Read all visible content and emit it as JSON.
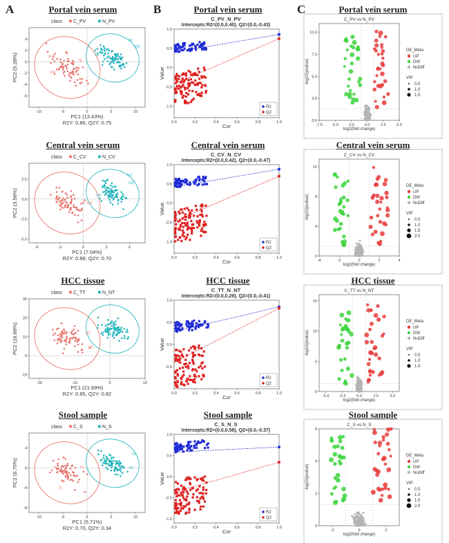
{
  "panel_letters": [
    "A",
    "B",
    "C"
  ],
  "row_titles": [
    "Portal vein serum",
    "Central vein serum",
    "HCC tissue",
    "Stool sample"
  ],
  "colors": {
    "control": "#e8746b",
    "case": "#22b5bd",
    "r2": "#1f2ad8",
    "q2": "#e02020",
    "up": "#e83b3b",
    "dw": "#3cd43c",
    "nodiff": "#b4b4b4"
  },
  "chart_data": [
    {
      "type": "scatter",
      "panel": "A",
      "row": 0,
      "legend_title": "class",
      "groups": [
        "C_PV",
        "N_PV"
      ],
      "xlabel": "PC1 (13.43%)",
      "ylabel": "PC2 (5.28%)",
      "stats": "R2Y: 0.86, Q2Y: 0.75",
      "xlim": [
        -12,
        12
      ],
      "ylim": [
        -8,
        6
      ],
      "xticks": [
        "-10",
        "-5",
        "0",
        "5",
        "10"
      ],
      "yticks": [
        "-6",
        "-4",
        "-2",
        "0",
        "2",
        "4"
      ],
      "labels": [
        "78",
        "64",
        "100",
        "103",
        "163",
        "54",
        "57"
      ]
    },
    {
      "type": "line",
      "panel": "B",
      "row": 0,
      "title": "C_PV_N_PV",
      "subtitle": "Intercepts:R2=(0.0,0.40), Q2=(0.0,-0.43)",
      "xlabel": "Cor",
      "ylabel": "Value",
      "xlim": [
        0,
        1
      ],
      "ylim": [
        -1.3,
        1.0
      ],
      "xticks": [
        "0.0",
        "0.2",
        "0.4",
        "0.6",
        "0.8",
        "1.0"
      ],
      "yticks": [
        "-1.0",
        "-0.5",
        "0.0",
        "0.5",
        "1.0"
      ],
      "series": [
        {
          "name": "R2",
          "intercept": 0.4,
          "final": 0.86
        },
        {
          "name": "Q2",
          "intercept": -0.43,
          "final": 0.75
        }
      ]
    },
    {
      "type": "scatter",
      "panel": "C",
      "row": 0,
      "title": "C_PV vs N_PV",
      "xlabel": "log2(fold change)",
      "ylabel": "-log10(pvalue)",
      "xlim": [
        -7.5,
        5
      ],
      "ylim": [
        0,
        11
      ],
      "hline": 1.3,
      "xticks": [
        "-7.5",
        "-5.0",
        "-2.5",
        "0.0",
        "2.5",
        "5.0"
      ],
      "yticks": [
        "0.0",
        "2.5",
        "5.0",
        "7.5",
        "10.0"
      ],
      "legend_de_title": "DE_Meta",
      "legend_de": [
        "UP",
        "DW",
        "NoDiff"
      ],
      "legend_vip_title": "VIP",
      "legend_vip": [
        "0.5",
        "1.0",
        "1.5"
      ]
    },
    {
      "type": "scatter",
      "panel": "A",
      "row": 1,
      "legend_title": "class",
      "groups": [
        "C_CV",
        "N_CV"
      ],
      "xlabel": "PC1 (7.04%)",
      "ylabel": "PC2 (3.56%)",
      "stats": "R2Y: 0.88, Q2Y: 0.70",
      "xlim": [
        -7,
        8
      ],
      "ylim": [
        -5.5,
        4.5
      ],
      "xticks": [
        "-6",
        "-3",
        "0",
        "3",
        "6"
      ],
      "yticks": [
        "-5.0",
        "-2.5",
        "0.0",
        "2.5"
      ],
      "labels": [
        "118",
        "507",
        "154",
        "133",
        "140",
        "136"
      ]
    },
    {
      "type": "line",
      "panel": "B",
      "row": 1,
      "title": "C_CV_N_CV",
      "subtitle": "Intercepts:R2=(0.0,0.42), Q2=(0.0,-0.47)",
      "xlabel": "Cor",
      "ylabel": "Value",
      "xlim": [
        0,
        1
      ],
      "ylim": [
        -1.3,
        1.0
      ],
      "xticks": [
        "0.0",
        "0.2",
        "0.4",
        "0.6",
        "0.8",
        "1.0"
      ],
      "yticks": [
        "-1.0",
        "-0.5",
        "0.0",
        "0.5",
        "1.0"
      ],
      "series": [
        {
          "name": "R2",
          "intercept": 0.42,
          "final": 0.88
        },
        {
          "name": "Q2",
          "intercept": -0.47,
          "final": 0.7
        }
      ]
    },
    {
      "type": "scatter",
      "panel": "C",
      "row": 1,
      "title": "C_CV vs N_CV",
      "xlabel": "log2(fold change)",
      "ylabel": "-log10(pvalue)",
      "xlim": [
        -4,
        4
      ],
      "ylim": [
        0,
        13
      ],
      "hline": 1.3,
      "xticks": [
        "-4",
        "-2",
        "0",
        "2",
        "4"
      ],
      "yticks": [
        "0",
        "4",
        "8",
        "12"
      ],
      "legend_de_title": "DE_Meta",
      "legend_de": [
        "UP",
        "DW",
        "NoDiff"
      ],
      "legend_vip_title": "VIP",
      "legend_vip": [
        "0.5",
        "1.0",
        "1.5",
        "2.0"
      ]
    },
    {
      "type": "scatter",
      "panel": "A",
      "row": 2,
      "legend_title": "class",
      "groups": [
        "C_TT",
        "N_NT"
      ],
      "xlabel": "PC1 (21.69%)",
      "ylabel": "PC2 (16.66%)",
      "stats": "R2Y: 0.85, Q2Y: 0.82",
      "xlim": [
        -23,
        10
      ],
      "ylim": [
        -12,
        30
      ],
      "xticks": [
        "-20",
        "-10",
        "0",
        "10"
      ],
      "yticks": [
        "-10",
        "0",
        "10",
        "20",
        "30"
      ],
      "labels": [
        "56",
        "64",
        "119",
        "170",
        "167"
      ]
    },
    {
      "type": "line",
      "panel": "B",
      "row": 2,
      "title": "C_TT_N_NT",
      "subtitle": "Intercepts:R2=(0.0,0.29), Q2=(0.0,-0.41)",
      "xlabel": "Cor",
      "ylabel": "Value",
      "xlim": [
        0,
        1
      ],
      "ylim": [
        -1.0,
        1.0
      ],
      "xticks": [
        "0.0",
        "0.2",
        "0.4",
        "0.6",
        "0.8",
        "1.0"
      ],
      "yticks": [
        "-0.5",
        "0.0",
        "0.5",
        "1.0"
      ],
      "series": [
        {
          "name": "R2",
          "intercept": 0.29,
          "final": 0.85
        },
        {
          "name": "Q2",
          "intercept": -0.41,
          "final": 0.82
        }
      ]
    },
    {
      "type": "scatter",
      "panel": "C",
      "row": 2,
      "title": "C_TT vs N_NT",
      "xlabel": "log2(fold change)",
      "ylabel": "-log10(pvalue)",
      "xlim": [
        -6,
        6
      ],
      "ylim": [
        0,
        16
      ],
      "hline": 1.3,
      "xticks": [
        "-5.0",
        "-2.5",
        "0.0",
        "2.5",
        "5.0"
      ],
      "yticks": [
        "0",
        "5",
        "10",
        "15"
      ],
      "legend_de_title": "DE_Meta",
      "legend_de": [
        "UP",
        "DW",
        "NoDiff"
      ],
      "legend_vip_title": "VIP",
      "legend_vip": [
        "0.5",
        "1.0",
        "1.5"
      ]
    },
    {
      "type": "scatter",
      "panel": "A",
      "row": 3,
      "legend_title": "class",
      "groups": [
        "C_S",
        "N_S"
      ],
      "xlabel": "PC1 (5.71%)",
      "ylabel": "PC2 (6.70%)",
      "stats": "R2Y: 0.70, Q2Y: 0.34",
      "xlim": [
        -12,
        12
      ],
      "ylim": [
        -9,
        7
      ],
      "xticks": [
        "-10",
        "-5",
        "0",
        "5",
        "10"
      ],
      "yticks": [
        "-8",
        "-4",
        "0",
        "4"
      ],
      "labels": [
        "61",
        "74",
        "67",
        "52",
        "70"
      ]
    },
    {
      "type": "line",
      "panel": "B",
      "row": 3,
      "title": "C_S_N_S",
      "subtitle": "Intercepts:R2=(0.0,0.58), Q2=(0.0,-0.37)",
      "xlabel": "Cor",
      "ylabel": "Value",
      "xlim": [
        0,
        1
      ],
      "ylim": [
        -1.1,
        1.0
      ],
      "xticks": [
        "0.0",
        "0.2",
        "0.4",
        "0.6",
        "0.8",
        "1.0"
      ],
      "yticks": [
        "-1.0",
        "-0.5",
        "0.0",
        "0.5",
        "1.0"
      ],
      "series": [
        {
          "name": "R2",
          "intercept": 0.58,
          "final": 0.7
        },
        {
          "name": "Q2",
          "intercept": -0.37,
          "final": 0.34
        }
      ]
    },
    {
      "type": "scatter",
      "panel": "C",
      "row": 3,
      "title": "C_S vs N_S",
      "xlabel": "log2(fold change)",
      "ylabel": "-log10(pvalue)",
      "xlim": [
        -3,
        3
      ],
      "ylim": [
        0,
        6
      ],
      "hline": 1.3,
      "xticks": [
        "-2",
        "0",
        "2"
      ],
      "yticks": [
        "0",
        "2",
        "4",
        "6"
      ],
      "legend_de_title": "DE_Meta",
      "legend_de": [
        "UP",
        "DW",
        "NoDiff"
      ],
      "legend_vip_title": "VIP",
      "legend_vip": [
        "0.5",
        "1.0",
        "1.5",
        "2.0"
      ]
    }
  ]
}
